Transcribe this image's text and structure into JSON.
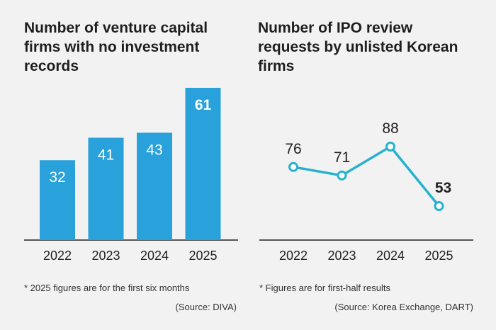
{
  "chart_data": [
    {
      "type": "bar",
      "title": "Number of venture capital firms with no investment records",
      "categories": [
        "2022",
        "2023",
        "2024",
        "2025"
      ],
      "values": [
        32,
        41,
        43,
        61
      ],
      "ylim": [
        0,
        61
      ],
      "grid": false,
      "colors": {
        "bar": "#29a2db",
        "label": "#ffffff"
      },
      "note": "* 2025 figures are for the first six months",
      "source": "(Source: DIVA)"
    },
    {
      "type": "line",
      "title": "Number of IPO review requests by unlisted Korean firms",
      "categories": [
        "2022",
        "2023",
        "2024",
        "2025"
      ],
      "values": [
        76,
        71,
        88,
        53
      ],
      "ylim": [
        53,
        88
      ],
      "grid": false,
      "colors": {
        "line": "#26b2ce",
        "marker_fill": "#ffffff"
      },
      "note": "* Figures are for first-half results",
      "source": "(Source: Korea Exchange, DART)"
    }
  ]
}
